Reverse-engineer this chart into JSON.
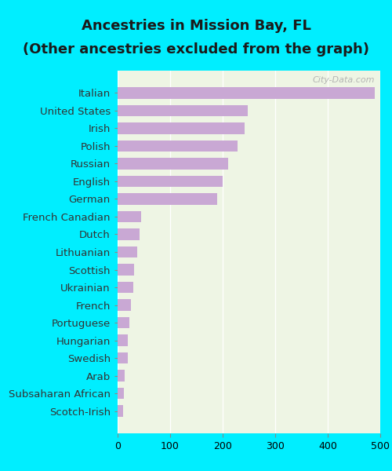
{
  "title_line1": "Ancestries in Mission Bay, FL",
  "title_line2": "(Other ancestries excluded from the graph)",
  "categories": [
    "Scotch-Irish",
    "Subsaharan African",
    "Arab",
    "Swedish",
    "Hungarian",
    "Portuguese",
    "French",
    "Ukrainian",
    "Scottish",
    "Lithuanian",
    "Dutch",
    "French Canadian",
    "German",
    "English",
    "Russian",
    "Polish",
    "Irish",
    "United States",
    "Italian"
  ],
  "values": [
    10,
    12,
    14,
    20,
    20,
    22,
    25,
    30,
    32,
    38,
    42,
    45,
    190,
    200,
    210,
    228,
    242,
    248,
    490
  ],
  "bar_color": "#c9a8d4",
  "background_color": "#00eeff",
  "plot_bg_color": "#eef5e4",
  "xlim": [
    0,
    500
  ],
  "xticks": [
    0,
    100,
    200,
    300,
    400,
    500
  ],
  "title_fontsize": 13,
  "label_fontsize": 9.5,
  "tick_fontsize": 9,
  "watermark_text": "City-Data.com",
  "bar_height": 0.65
}
